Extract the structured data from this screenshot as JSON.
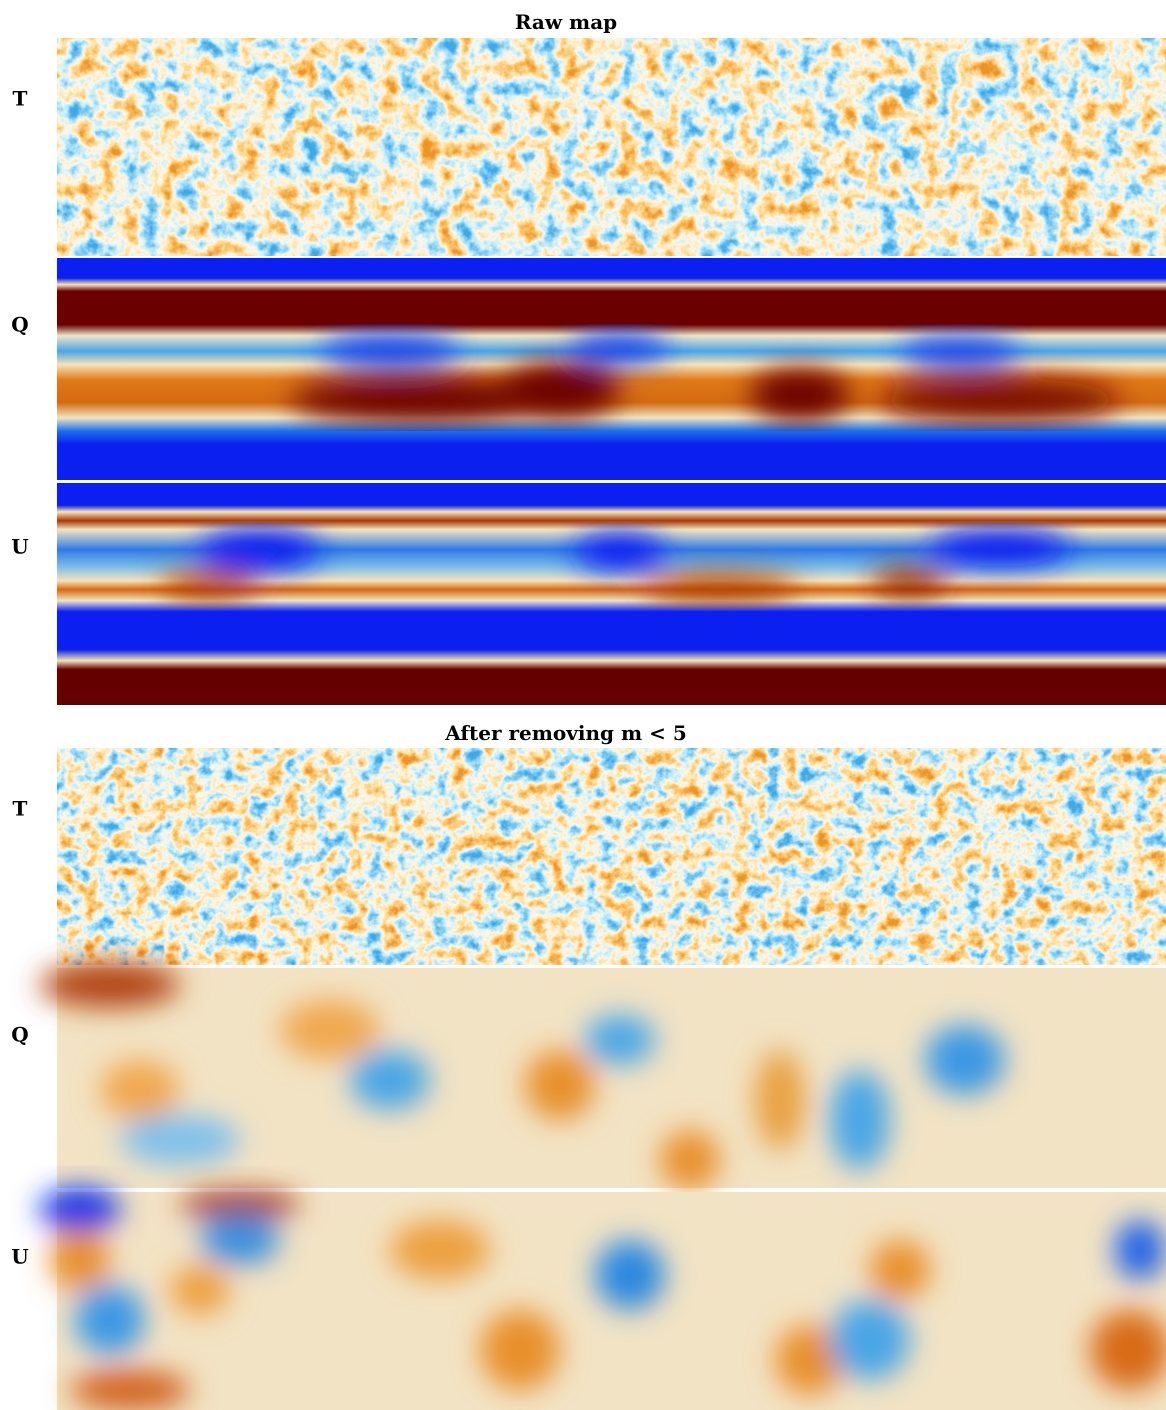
{
  "figure": {
    "sections": [
      {
        "title": "Raw map",
        "panels": [
          "T",
          "Q",
          "U"
        ]
      },
      {
        "title": "After removing m < 5",
        "panels": [
          "T",
          "Q",
          "U"
        ]
      }
    ]
  }
}
